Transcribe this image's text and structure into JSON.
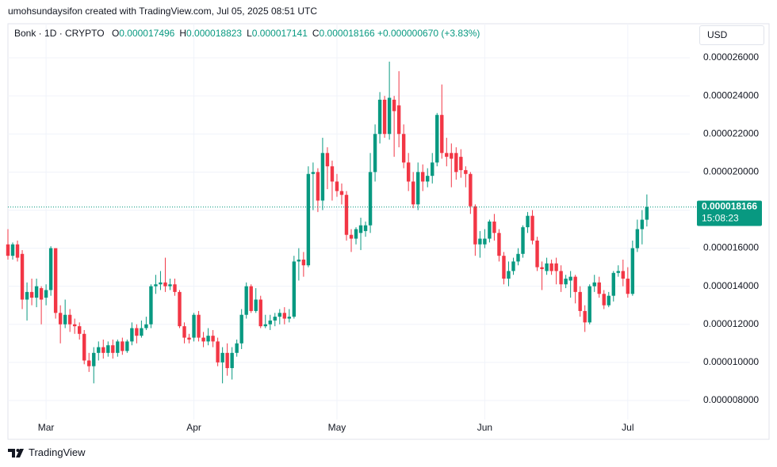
{
  "attribution": "umohsundaysifon created with TradingView.com, Jul 05, 2025 08:51 UTC",
  "ohlc_legend": [
    {
      "key": "O",
      "value": "0.000017496"
    },
    {
      "key": "H",
      "value": "0.000018823"
    },
    {
      "key": "L",
      "value": "0.000017141"
    },
    {
      "key": "C",
      "value": "0.000018166"
    }
  ],
  "change": "+0.000000670 (+3.83%)",
  "currency": "USD",
  "last_price_label": "0.000018166",
  "countdown": "15:08:23",
  "brand": "TradingView",
  "chart_data": {
    "type": "candlestick",
    "title": "Bonk · 1D · CRYPTO",
    "up_color": "#089981",
    "down_color": "#f23645",
    "grid": true,
    "xlim": [
      0,
      143
    ],
    "xticks": [
      {
        "value": 8,
        "label": "Mar"
      },
      {
        "value": 39,
        "label": "Apr"
      },
      {
        "value": 69,
        "label": "May"
      },
      {
        "value": 100,
        "label": "Jun"
      },
      {
        "value": 130,
        "label": "Jul"
      }
    ],
    "ylim": [
      7e-06,
      2.779e-05
    ],
    "yticks": [
      {
        "value": 8e-06,
        "label": "0.000008000"
      },
      {
        "value": 1e-05,
        "label": "0.000010000"
      },
      {
        "value": 1.2e-05,
        "label": "0.000012000"
      },
      {
        "value": 1.4e-05,
        "label": "0.000014000"
      },
      {
        "value": 1.6e-05,
        "label": "0.000016000"
      },
      {
        "value": 1.8e-05,
        "label": "0.000018000"
      },
      {
        "value": 2e-05,
        "label": "0.000020000"
      },
      {
        "value": 2.2e-05,
        "label": "0.000022000"
      },
      {
        "value": 2.4e-05,
        "label": "0.000024000"
      },
      {
        "value": 2.6e-05,
        "label": "0.000026000"
      }
    ],
    "open": [
      1.62e-05,
      1.56e-05,
      1.62e-05,
      1.57e-05,
      1.33e-05,
      1.37e-05,
      1.34e-05,
      1.39e-05,
      1.34e-05,
      1.38e-05,
      1.6e-05,
      1.26e-05,
      1.2e-05,
      1.25e-05,
      1.2e-05,
      1.19e-05,
      1.15e-05,
      1.01e-05,
      9.8e-06,
      1.05e-05,
      1.08e-05,
      1.05e-05,
      1.09e-05,
      1.05e-05,
      1.11e-05,
      1.06e-05,
      1.11e-05,
      1.18e-05,
      1.14e-05,
      1.18e-05,
      1.2e-05,
      1.4e-05,
      1.41e-05,
      1.42e-05,
      1.4e-05,
      1.41e-05,
      1.37e-05,
      1.19e-05,
      1.13e-05,
      1.13e-05,
      1.25e-05,
      1.13e-05,
      1.11e-05,
      1.14e-05,
      1.11e-05,
      1e-05,
      1.05e-05,
      9.7e-06,
      1.05e-05,
      1.1e-05,
      1.25e-05,
      1.4e-05,
      1.27e-05,
      1.33e-05,
      1.19e-05,
      1.2e-05,
      1.22e-05,
      1.24e-05,
      1.26e-05,
      1.23e-05,
      1.24e-05,
      1.53e-05,
      1.54e-05,
      1.51e-05,
      1.99e-05,
      2e-05,
      1.85e-05,
      2.1e-05,
      2.03e-05,
      1.95e-05,
      1.9e-05,
      1.88e-05,
      1.67e-05,
      1.65e-05,
      1.68e-05,
      1.69e-05,
      1.72e-05,
      2e-05,
      2.2e-05,
      2.38e-05,
      2.2e-05,
      2.38e-05,
      2.35e-05,
      2.2e-05,
      2.05e-05,
      1.95e-05,
      1.83e-05,
      2e-05,
      1.95e-05,
      1.98e-05,
      2.05e-05,
      2.3e-05,
      2.1e-05,
      2.1e-05,
      2.1e-05,
      2.08e-05,
      2.01e-05,
      1.99e-05,
      1.82e-05,
      1.62e-05,
      1.62e-05,
      1.65e-05,
      1.74e-05,
      1.68e-05,
      1.56e-05,
      1.44e-05,
      1.48e-05,
      1.53e-05,
      1.57e-05,
      1.71e-05,
      1.77e-05,
      1.64e-05,
      1.5e-05,
      1.48e-05,
      1.52e-05,
      1.52e-05,
      1.48e-05,
      1.41e-05,
      1.43e-05,
      1.45e-05,
      1.37e-05,
      1.27e-05,
      1.21e-05,
      1.4e-05,
      1.42e-05,
      1.36e-05,
      1.3e-05,
      1.35e-05,
      1.47e-05,
      1.48e-05,
      1.44e-05,
      1.36e-05,
      1.6e-05,
      1.7e-05,
      1.7496e-05
    ],
    "high": [
      1.7e-05,
      1.63e-05,
      1.64e-05,
      1.59e-05,
      1.42e-05,
      1.44e-05,
      1.44e-05,
      1.4e-05,
      1.41e-05,
      1.61e-05,
      1.6e-05,
      1.3e-05,
      1.33e-05,
      1.28e-05,
      1.23e-05,
      1.21e-05,
      1.17e-05,
      1.05e-05,
      1.08e-05,
      1.11e-05,
      1.12e-05,
      1.11e-05,
      1.12e-05,
      1.12e-05,
      1.13e-05,
      1.12e-05,
      1.21e-05,
      1.2e-05,
      1.22e-05,
      1.24e-05,
      1.41e-05,
      1.46e-05,
      1.48e-05,
      1.55e-05,
      1.44e-05,
      1.44e-05,
      1.38e-05,
      1.21e-05,
      1.15e-05,
      1.26e-05,
      1.27e-05,
      1.16e-05,
      1.18e-05,
      1.17e-05,
      1.13e-05,
      1.08e-05,
      1.1e-05,
      1.08e-05,
      1.12e-05,
      1.28e-05,
      1.42e-05,
      1.41e-05,
      1.39e-05,
      1.35e-05,
      1.25e-05,
      1.25e-05,
      1.26e-05,
      1.28e-05,
      1.29e-05,
      1.28e-05,
      1.56e-05,
      1.6e-05,
      1.58e-05,
      2.03e-05,
      2.05e-05,
      2.02e-05,
      2.18e-05,
      2.13e-05,
      2.06e-05,
      1.99e-05,
      1.94e-05,
      1.9e-05,
      1.7e-05,
      1.71e-05,
      1.76e-05,
      1.74e-05,
      2.1e-05,
      2.25e-05,
      2.42e-05,
      2.4e-05,
      2.58e-05,
      2.4e-05,
      2.53e-05,
      2.25e-05,
      2.1e-05,
      2e-05,
      2.05e-05,
      2.04e-05,
      2.02e-05,
      2.1e-05,
      2.31e-05,
      2.46e-05,
      2.18e-05,
      2.15e-05,
      2.13e-05,
      2.12e-05,
      2.03e-05,
      2e-05,
      1.83e-05,
      1.69e-05,
      1.7e-05,
      1.75e-05,
      1.78e-05,
      1.7e-05,
      1.58e-05,
      1.53e-05,
      1.55e-05,
      1.6e-05,
      1.72e-05,
      1.79e-05,
      1.8e-05,
      1.66e-05,
      1.53e-05,
      1.55e-05,
      1.54e-05,
      1.55e-05,
      1.51e-05,
      1.46e-05,
      1.48e-05,
      1.46e-05,
      1.4e-05,
      1.3e-05,
      1.41e-05,
      1.46e-05,
      1.45e-05,
      1.38e-05,
      1.37e-05,
      1.48e-05,
      1.51e-05,
      1.54e-05,
      1.5e-05,
      1.64e-05,
      1.75e-05,
      1.8e-05,
      1.8823e-05
    ],
    "low": [
      1.54e-05,
      1.54e-05,
      1.53e-05,
      1.28e-05,
      1.22e-05,
      1.3e-05,
      1.29e-05,
      1.2e-05,
      1.3e-05,
      1.35e-05,
      1.23e-05,
      1.1e-05,
      1.18e-05,
      1.16e-05,
      1.15e-05,
      1.12e-05,
      9.9e-06,
      9.5e-06,
      8.9e-06,
      1.01e-05,
      1.02e-05,
      1.03e-05,
      1.02e-05,
      1.03e-05,
      1.04e-05,
      1.05e-05,
      1.09e-05,
      1.1e-05,
      1.13e-05,
      1.17e-05,
      1.18e-05,
      1.36e-05,
      1.38e-05,
      1.37e-05,
      1.38e-05,
      1.35e-05,
      1.18e-05,
      1.1e-05,
      1.1e-05,
      1.11e-05,
      1.11e-05,
      1.08e-05,
      1.09e-05,
      1.08e-05,
      9.8e-06,
      8.9e-06,
      9.3e-06,
      9.1e-06,
      1.03e-05,
      1.07e-05,
      1.23e-05,
      1.26e-05,
      1.26e-05,
      1.18e-05,
      1.18e-05,
      1.17e-05,
      1.19e-05,
      1.2e-05,
      1.2e-05,
      1.21e-05,
      1.23e-05,
      1.43e-05,
      1.45e-05,
      1.5e-05,
      1.8e-05,
      1.79e-05,
      1.8e-05,
      1.91e-05,
      1.85e-05,
      1.87e-05,
      1.83e-05,
      1.64e-05,
      1.58e-05,
      1.62e-05,
      1.59e-05,
      1.66e-05,
      1.68e-05,
      1.95e-05,
      2.15e-05,
      2.18e-05,
      2.17e-05,
      2.08e-05,
      2.13e-05,
      2.02e-05,
      1.9e-05,
      1.81e-05,
      1.8e-05,
      1.9e-05,
      1.92e-05,
      1.94e-05,
      2.03e-05,
      2.07e-05,
      2.03e-05,
      1.92e-05,
      1.96e-05,
      1.97e-05,
      1.92e-05,
      1.78e-05,
      1.56e-05,
      1.55e-05,
      1.6e-05,
      1.63e-05,
      1.64e-05,
      1.53e-05,
      1.41e-05,
      1.4e-05,
      1.46e-05,
      1.51e-05,
      1.55e-05,
      1.68e-05,
      1.62e-05,
      1.48e-05,
      1.38e-05,
      1.46e-05,
      1.46e-05,
      1.41e-05,
      1.37e-05,
      1.39e-05,
      1.34e-05,
      1.31e-05,
      1.24e-05,
      1.16e-05,
      1.2e-05,
      1.37e-05,
      1.34e-05,
      1.28e-05,
      1.29e-05,
      1.32e-05,
      1.45e-05,
      1.4e-05,
      1.34e-05,
      1.35e-05,
      1.58e-05,
      1.62e-05,
      1.7141e-05
    ],
    "close": [
      1.56e-05,
      1.62e-05,
      1.55e-05,
      1.33e-05,
      1.37e-05,
      1.34e-05,
      1.4e-05,
      1.33e-05,
      1.38e-05,
      1.6e-05,
      1.26e-05,
      1.2e-05,
      1.25e-05,
      1.2e-05,
      1.19e-05,
      1.15e-05,
      1.01e-05,
      9.8e-06,
      1.05e-05,
      1.08e-05,
      1.05e-05,
      1.09e-05,
      1.05e-05,
      1.11e-05,
      1.06e-05,
      1.11e-05,
      1.18e-05,
      1.14e-05,
      1.18e-05,
      1.2e-05,
      1.4e-05,
      1.41e-05,
      1.42e-05,
      1.4e-05,
      1.41e-05,
      1.37e-05,
      1.19e-05,
      1.13e-05,
      1.12e-05,
      1.25e-05,
      1.13e-05,
      1.11e-05,
      1.14e-05,
      1.11e-05,
      1e-05,
      1.05e-05,
      9.7e-06,
      1.05e-05,
      1.1e-05,
      1.25e-05,
      1.4e-05,
      1.27e-05,
      1.33e-05,
      1.19e-05,
      1.2e-05,
      1.22e-05,
      1.24e-05,
      1.26e-05,
      1.23e-05,
      1.24e-05,
      1.53e-05,
      1.54e-05,
      1.51e-05,
      1.99e-05,
      2e-05,
      1.85e-05,
      2.1e-05,
      2.03e-05,
      1.95e-05,
      1.9e-05,
      1.88e-05,
      1.67e-05,
      1.65e-05,
      1.7e-05,
      1.72e-05,
      1.72e-05,
      2e-05,
      2.2e-05,
      2.38e-05,
      2.2e-05,
      2.39e-05,
      2.32e-05,
      2.2e-05,
      2.05e-05,
      1.95e-05,
      1.83e-05,
      2e-05,
      1.95e-05,
      1.98e-05,
      2.05e-05,
      2.3e-05,
      2.1e-05,
      2.08e-05,
      2.07e-05,
      2e-05,
      2.01e-05,
      1.99e-05,
      1.82e-05,
      1.62e-05,
      1.65e-05,
      1.65e-05,
      1.74e-05,
      1.68e-05,
      1.56e-05,
      1.44e-05,
      1.48e-05,
      1.53e-05,
      1.57e-05,
      1.71e-05,
      1.77e-05,
      1.64e-05,
      1.5e-05,
      1.49e-05,
      1.52e-05,
      1.48e-05,
      1.48e-05,
      1.41e-05,
      1.44e-05,
      1.45e-05,
      1.37e-05,
      1.27e-05,
      1.21e-05,
      1.4e-05,
      1.42e-05,
      1.36e-05,
      1.3e-05,
      1.35e-05,
      1.47e-05,
      1.48e-05,
      1.44e-05,
      1.36e-05,
      1.6e-05,
      1.7e-05,
      1.7496e-05,
      1.8166e-05
    ]
  }
}
